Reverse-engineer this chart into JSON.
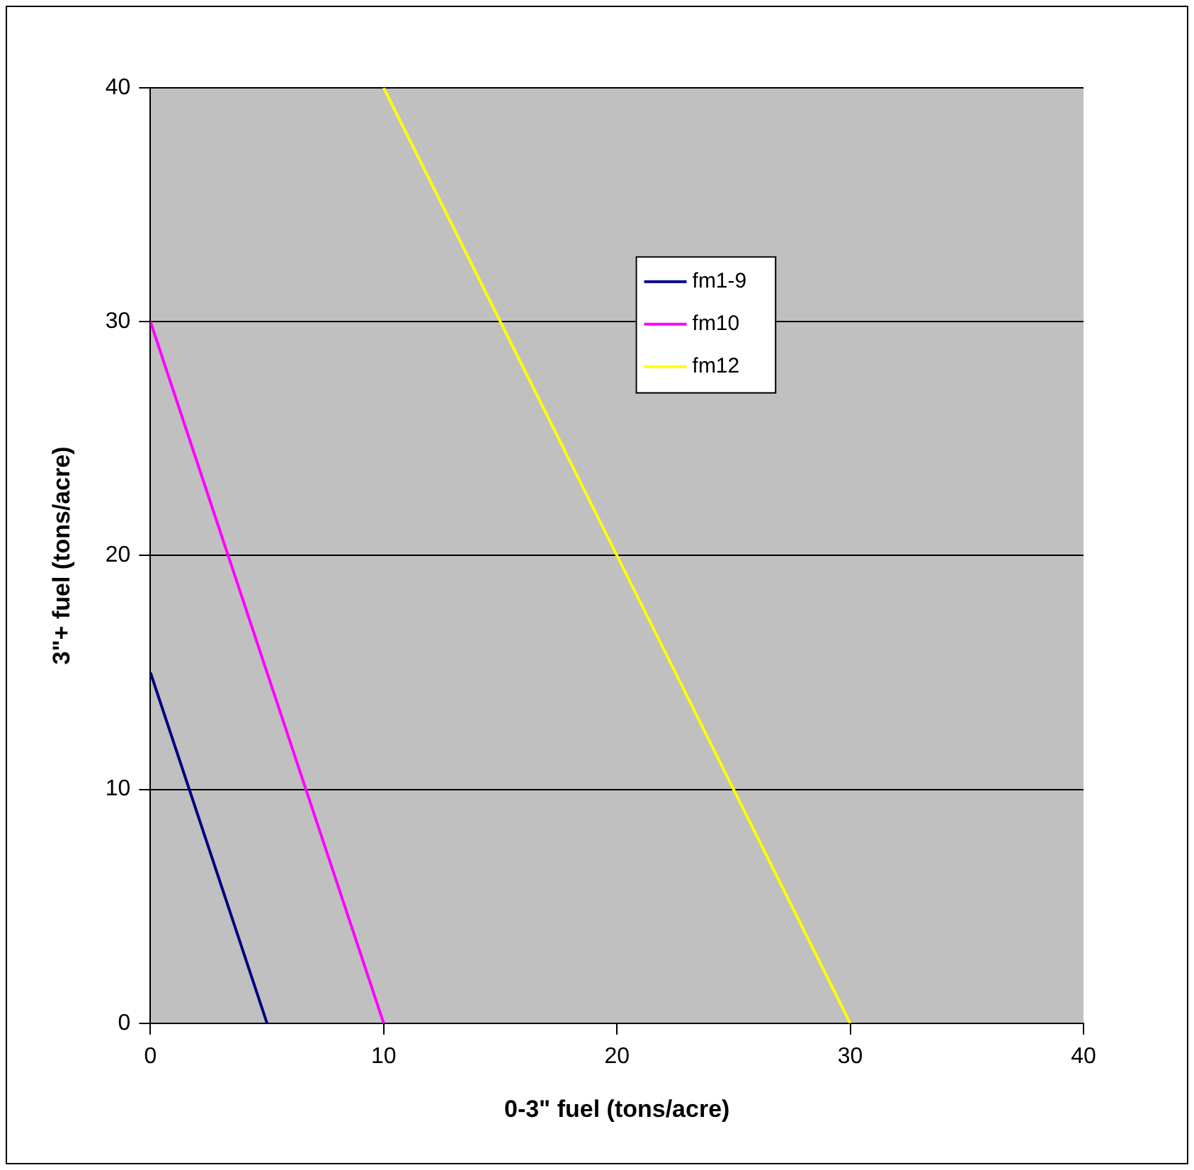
{
  "chart_data": {
    "type": "line",
    "xlabel": "0-3\" fuel (tons/acre)",
    "ylabel": "3\"+ fuel (tons/acre)",
    "series": [
      {
        "name": "fm1-9",
        "color": "#000080",
        "x": [
          0,
          5
        ],
        "values": [
          15,
          0
        ]
      },
      {
        "name": "fm10",
        "color": "#ff00ff",
        "x": [
          0,
          10
        ],
        "values": [
          30,
          0
        ]
      },
      {
        "name": "fm12",
        "color": "#ffff00",
        "x": [
          10,
          30
        ],
        "values": [
          40,
          0
        ]
      }
    ],
    "xlim": [
      0,
      40
    ],
    "xticks": [
      0,
      10,
      20,
      30,
      40
    ],
    "ylim": [
      0,
      40
    ],
    "yticks": [
      0,
      10,
      20,
      30,
      40
    ],
    "grid": "y",
    "legend": "top right",
    "marker": "none",
    "line_style": "solid"
  }
}
